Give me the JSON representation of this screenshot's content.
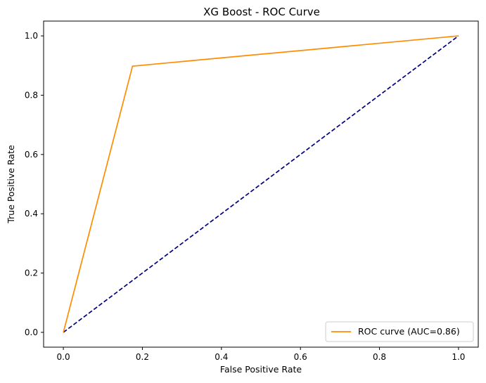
{
  "chart_data": {
    "type": "line",
    "title": "XG Boost - ROC Curve",
    "xlabel": "False Positive Rate",
    "ylabel": "True Positive Rate",
    "xlim": [
      -0.05,
      1.05
    ],
    "ylim": [
      -0.05,
      1.05
    ],
    "x_ticks": [
      "0.0",
      "0.2",
      "0.4",
      "0.6",
      "0.8",
      "1.0"
    ],
    "y_ticks": [
      "0.0",
      "0.2",
      "0.4",
      "0.6",
      "0.8",
      "1.0"
    ],
    "grid": false,
    "legend_position": "lower right",
    "series": [
      {
        "name": "ROC curve (AUC=0.86)",
        "color": "#ff8c00",
        "style": "solid",
        "x": [
          0.0,
          0.175,
          1.0
        ],
        "y": [
          0.0,
          0.898,
          1.0
        ]
      },
      {
        "color": "#000080",
        "style": "dashed",
        "x": [
          0.0,
          1.0
        ],
        "y": [
          0.0,
          1.0
        ]
      }
    ]
  }
}
